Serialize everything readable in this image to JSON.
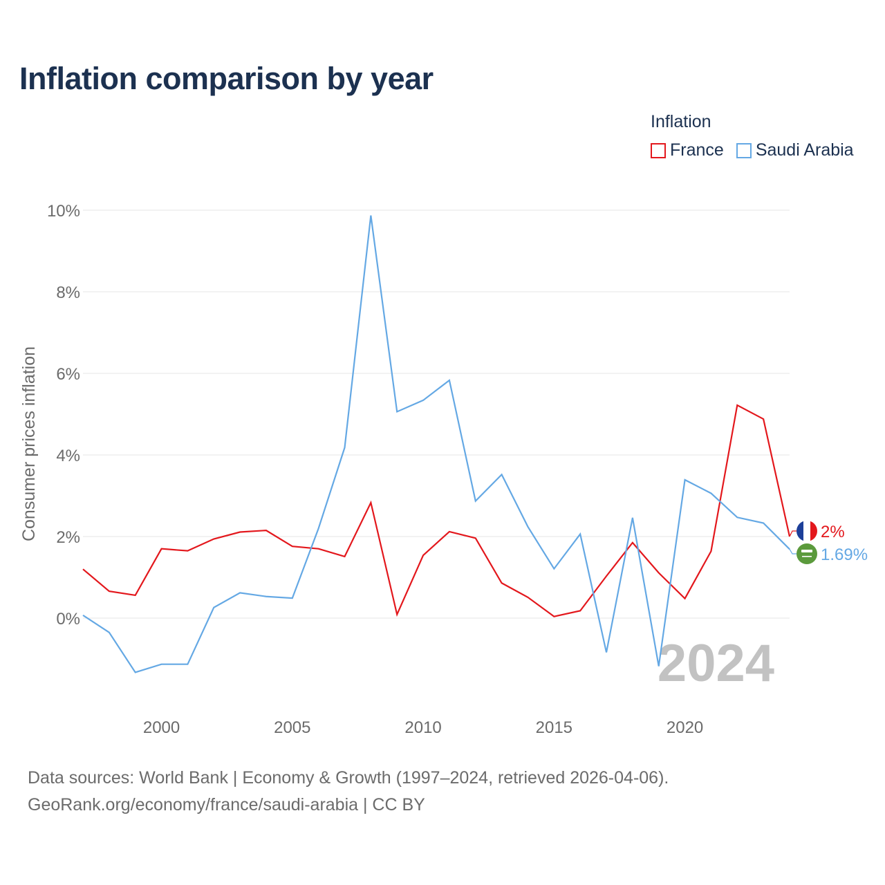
{
  "title": "Inflation comparison by year",
  "legend": {
    "title": "Inflation",
    "items": [
      {
        "label": "France",
        "color": "#e3171c"
      },
      {
        "label": "Saudi Arabia",
        "color": "#64a8e4"
      }
    ]
  },
  "source": {
    "line1": "Data sources: World Bank | Economy & Growth (1997–2024, retrieved 2026-04-06).",
    "line2": "GeoRank.org/economy/france/saudi-arabia | CC BY"
  },
  "chart_data": {
    "type": "line",
    "title": "Inflation comparison by year",
    "xlabel": "",
    "ylabel": "Consumer prices inflation",
    "x": [
      1997,
      1998,
      1999,
      2000,
      2001,
      2002,
      2003,
      2004,
      2005,
      2006,
      2007,
      2008,
      2009,
      2010,
      2011,
      2012,
      2013,
      2014,
      2015,
      2016,
      2017,
      2018,
      2019,
      2020,
      2021,
      2022,
      2023,
      2024
    ],
    "xlim": [
      1997,
      2024
    ],
    "ylim": [
      -2.0,
      10.0
    ],
    "xticks": [
      "2000",
      "2005",
      "2010",
      "2015",
      "2020"
    ],
    "yticks": [
      "0%",
      "2%",
      "4%",
      "6%",
      "8%",
      "10%"
    ],
    "grid": true,
    "watermark_year": "2024",
    "series": [
      {
        "name": "France",
        "color": "#e3171c",
        "flag": "france-flag",
        "end_label": "2%",
        "values": [
          1.2,
          0.66,
          0.56,
          1.7,
          1.65,
          1.94,
          2.11,
          2.15,
          1.76,
          1.7,
          1.51,
          2.83,
          0.09,
          1.54,
          2.12,
          1.96,
          0.86,
          0.51,
          0.04,
          0.18,
          1.03,
          1.85,
          1.11,
          0.48,
          1.64,
          5.22,
          4.88,
          2.0
        ]
      },
      {
        "name": "Saudi Arabia",
        "color": "#64a8e4",
        "flag": "saudi-arabia-flag",
        "end_label": "1.69%",
        "values": [
          0.07,
          -0.35,
          -1.33,
          -1.13,
          -1.13,
          0.26,
          0.62,
          0.53,
          0.49,
          2.2,
          4.18,
          9.87,
          5.06,
          5.34,
          5.83,
          2.87,
          3.52,
          2.24,
          1.21,
          2.06,
          -0.84,
          2.46,
          -1.18,
          3.39,
          3.06,
          2.47,
          2.33,
          1.69
        ]
      }
    ]
  }
}
